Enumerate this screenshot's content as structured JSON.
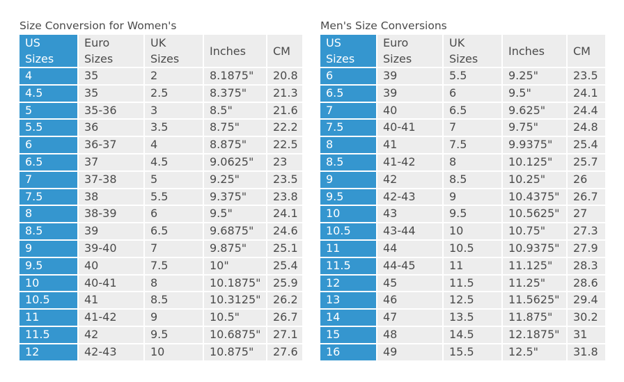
{
  "women": {
    "title": "Size Conversion for Women's",
    "headers": [
      "US Sizes",
      "Euro Sizes",
      "UK Sizes",
      "Inches",
      "CM"
    ],
    "header_lines": [
      [
        "US",
        "Sizes"
      ],
      [
        "Euro",
        "Sizes"
      ],
      [
        "UK",
        "Sizes"
      ],
      [
        "Inches"
      ],
      [
        "CM"
      ]
    ],
    "rows": [
      [
        "4",
        "35",
        "2",
        "8.1875\"",
        "20.8"
      ],
      [
        "4.5",
        "35",
        "2.5",
        "8.375\"",
        "21.3"
      ],
      [
        "5",
        "35-36",
        "3",
        "8.5\"",
        "21.6"
      ],
      [
        "5.5",
        "36",
        "3.5",
        "8.75\"",
        "22.2"
      ],
      [
        "6",
        "36-37",
        "4",
        "8.875\"",
        "22.5"
      ],
      [
        "6.5",
        "37",
        "4.5",
        "9.0625\"",
        "23"
      ],
      [
        "7",
        "37-38",
        "5",
        "9.25\"",
        "23.5"
      ],
      [
        "7.5",
        "38",
        "5.5",
        "9.375\"",
        "23.8"
      ],
      [
        "8",
        "38-39",
        "6",
        "9.5\"",
        "24.1"
      ],
      [
        "8.5",
        "39",
        "6.5",
        "9.6875\"",
        "24.6"
      ],
      [
        "9",
        "39-40",
        "7",
        "9.875\"",
        "25.1"
      ],
      [
        "9.5",
        "40",
        "7.5",
        "10\"",
        "25.4"
      ],
      [
        "10",
        "40-41",
        "8",
        "10.1875\"",
        "25.9"
      ],
      [
        "10.5",
        "41",
        "8.5",
        "10.3125\"",
        "26.2"
      ],
      [
        "11",
        "41-42",
        "9",
        "10.5\"",
        "26.7"
      ],
      [
        "11.5",
        "42",
        "9.5",
        "10.6875\"",
        "27.1"
      ],
      [
        "12",
        "42-43",
        "10",
        "10.875\"",
        "27.6"
      ]
    ]
  },
  "men": {
    "title": "Men's Size Conversions",
    "headers": [
      "US Sizes",
      "Euro Sizes",
      "UK Sizes",
      "Inches",
      "CM"
    ],
    "header_lines": [
      [
        "US",
        "Sizes"
      ],
      [
        "Euro",
        "Sizes"
      ],
      [
        "UK",
        "Sizes"
      ],
      [
        "Inches"
      ],
      [
        "CM"
      ]
    ],
    "rows": [
      [
        "6",
        "39",
        "5.5",
        "9.25\"",
        "23.5"
      ],
      [
        "6.5",
        "39",
        "6",
        "9.5\"",
        "24.1"
      ],
      [
        "7",
        "40",
        "6.5",
        "9.625\"",
        "24.4"
      ],
      [
        "7.5",
        "40-41",
        "7",
        "9.75\"",
        "24.8"
      ],
      [
        "8",
        "41",
        "7.5",
        "9.9375\"",
        "25.4"
      ],
      [
        "8.5",
        "41-42",
        "8",
        "10.125\"",
        "25.7"
      ],
      [
        "9",
        "42",
        "8.5",
        "10.25\"",
        "26"
      ],
      [
        "9.5",
        "42-43",
        "9",
        "10.4375\"",
        "26.7"
      ],
      [
        "10",
        "43",
        "9.5",
        "10.5625\"",
        "27"
      ],
      [
        "10.5",
        "43-44",
        "10",
        "10.75\"",
        "27.3"
      ],
      [
        "11",
        "44",
        "10.5",
        "10.9375\"",
        "27.9"
      ],
      [
        "11.5",
        "44-45",
        "11",
        "11.125\"",
        "28.3"
      ],
      [
        "12",
        "45",
        "11.5",
        "11.25\"",
        "28.6"
      ],
      [
        "13",
        "46",
        "12.5",
        "11.5625\"",
        "29.4"
      ],
      [
        "14",
        "47",
        "13.5",
        "11.875\"",
        "30.2"
      ],
      [
        "15",
        "48",
        "14.5",
        "12.1875\"",
        "31"
      ],
      [
        "16",
        "49",
        "15.5",
        "12.5\"",
        "31.8"
      ]
    ]
  },
  "colors": {
    "accent": "#3596cf",
    "cell_bg": "#ededed",
    "text": "#4a4a4a"
  }
}
